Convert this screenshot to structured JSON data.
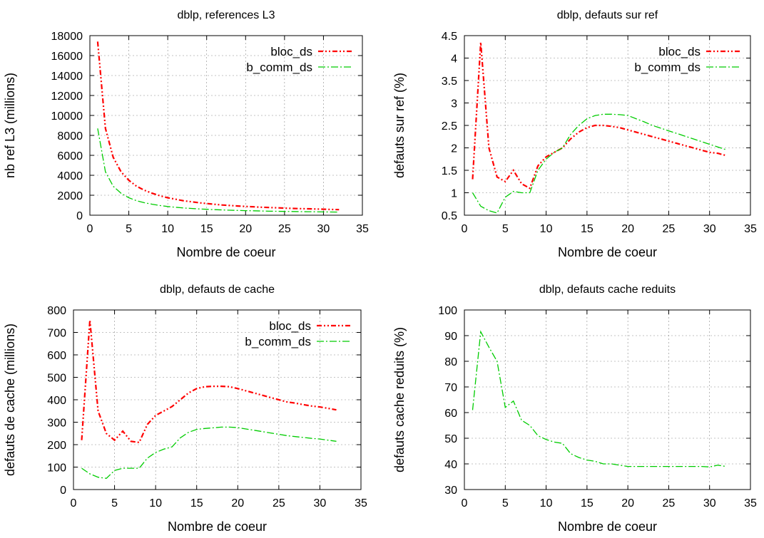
{
  "chart_data": [
    {
      "type": "line",
      "title": "dblp, references L3",
      "xlabel": "Nombre de coeur",
      "ylabel": "nb ref L3 (millions)",
      "xlim": [
        0,
        35
      ],
      "ylim": [
        0,
        18000
      ],
      "xticks": [
        0,
        5,
        10,
        15,
        20,
        25,
        30,
        35
      ],
      "yticks": [
        0,
        2000,
        4000,
        6000,
        8000,
        10000,
        12000,
        14000,
        16000,
        18000
      ],
      "grid": true,
      "legend": "top-right",
      "series": [
        {
          "name": "bloc_ds",
          "color": "#ff0000",
          "dash": "dash-dot-dot",
          "x": [
            1,
            2,
            3,
            4,
            5,
            6,
            7,
            8,
            9,
            10,
            11,
            12,
            13,
            14,
            15,
            16,
            17,
            18,
            19,
            20,
            21,
            22,
            23,
            24,
            25,
            26,
            27,
            28,
            29,
            30,
            31,
            32
          ],
          "y": [
            17400,
            8700,
            5800,
            4350,
            3500,
            2900,
            2500,
            2200,
            1950,
            1750,
            1600,
            1450,
            1350,
            1250,
            1170,
            1090,
            1020,
            970,
            920,
            880,
            840,
            800,
            770,
            740,
            710,
            680,
            660,
            640,
            620,
            600,
            580,
            560
          ]
        },
        {
          "name": "b_comm_ds",
          "color": "#00cc00",
          "dash": "long-dash-dot",
          "x": [
            1,
            2,
            3,
            4,
            5,
            6,
            7,
            8,
            9,
            10,
            11,
            12,
            13,
            14,
            15,
            16,
            17,
            18,
            19,
            20,
            21,
            22,
            23,
            24,
            25,
            26,
            27,
            28,
            29,
            30,
            31,
            32
          ],
          "y": [
            8700,
            4350,
            2900,
            2200,
            1750,
            1450,
            1250,
            1100,
            970,
            870,
            790,
            730,
            680,
            630,
            590,
            560,
            530,
            500,
            480,
            460,
            440,
            420,
            400,
            390,
            380,
            370,
            360,
            350,
            340,
            330,
            320,
            310
          ]
        }
      ]
    },
    {
      "type": "line",
      "title": "dblp, defauts sur ref",
      "xlabel": "Nombre de coeur",
      "ylabel": "defauts sur ref (%)",
      "xlim": [
        0,
        35
      ],
      "ylim": [
        0.5,
        4.5
      ],
      "xticks": [
        0,
        5,
        10,
        15,
        20,
        25,
        30,
        35
      ],
      "yticks": [
        0.5,
        1,
        1.5,
        2,
        2.5,
        3,
        3.5,
        4,
        4.5
      ],
      "grid": true,
      "legend": "top-right",
      "series": [
        {
          "name": "bloc_ds",
          "color": "#ff0000",
          "dash": "dash-dot-dot",
          "x": [
            1,
            2,
            3,
            4,
            5,
            6,
            7,
            8,
            9,
            10,
            11,
            12,
            13,
            14,
            15,
            16,
            17,
            18,
            19,
            20,
            21,
            22,
            23,
            24,
            25,
            26,
            27,
            28,
            29,
            30,
            31,
            32
          ],
          "y": [
            1.3,
            4.35,
            2.0,
            1.35,
            1.25,
            1.5,
            1.2,
            1.1,
            1.6,
            1.8,
            1.9,
            2.0,
            2.2,
            2.35,
            2.45,
            2.5,
            2.5,
            2.48,
            2.45,
            2.4,
            2.35,
            2.3,
            2.25,
            2.2,
            2.15,
            2.1,
            2.05,
            2.0,
            1.95,
            1.9,
            1.88,
            1.83
          ]
        },
        {
          "name": "b_comm_ds",
          "color": "#00cc00",
          "dash": "long-dash-dot",
          "x": [
            1,
            2,
            3,
            4,
            5,
            6,
            7,
            8,
            9,
            10,
            11,
            12,
            13,
            14,
            15,
            16,
            17,
            18,
            19,
            20,
            21,
            22,
            23,
            24,
            25,
            26,
            27,
            28,
            29,
            30,
            31,
            32
          ],
          "y": [
            1.0,
            0.7,
            0.6,
            0.55,
            0.9,
            1.03,
            1.0,
            1.0,
            1.5,
            1.75,
            1.9,
            2.0,
            2.3,
            2.5,
            2.65,
            2.72,
            2.75,
            2.75,
            2.74,
            2.72,
            2.65,
            2.58,
            2.5,
            2.44,
            2.38,
            2.32,
            2.26,
            2.2,
            2.14,
            2.08,
            2.02,
            1.96
          ]
        }
      ]
    },
    {
      "type": "line",
      "title": "dblp, defauts de cache",
      "xlabel": "Nombre de coeur",
      "ylabel": "defauts de cache (millions)",
      "xlim": [
        0,
        35
      ],
      "ylim": [
        0,
        800
      ],
      "xticks": [
        0,
        5,
        10,
        15,
        20,
        25,
        30,
        35
      ],
      "yticks": [
        0,
        100,
        200,
        300,
        400,
        500,
        600,
        700,
        800
      ],
      "grid": true,
      "legend": "top-right",
      "series": [
        {
          "name": "bloc_ds",
          "color": "#ff0000",
          "dash": "dash-dot-dot",
          "x": [
            1,
            2,
            3,
            4,
            5,
            6,
            7,
            8,
            9,
            10,
            11,
            12,
            13,
            14,
            15,
            16,
            17,
            18,
            19,
            20,
            21,
            22,
            23,
            24,
            25,
            26,
            27,
            28,
            29,
            30,
            31,
            32
          ],
          "y": [
            220,
            755,
            350,
            250,
            220,
            260,
            215,
            210,
            290,
            330,
            350,
            370,
            400,
            430,
            450,
            458,
            460,
            460,
            458,
            450,
            440,
            430,
            420,
            410,
            400,
            390,
            385,
            378,
            372,
            368,
            362,
            355
          ]
        },
        {
          "name": "b_comm_ds",
          "color": "#00cc00",
          "dash": "long-dash-dot",
          "x": [
            1,
            2,
            3,
            4,
            5,
            6,
            7,
            8,
            9,
            10,
            11,
            12,
            13,
            14,
            15,
            16,
            17,
            18,
            19,
            20,
            21,
            22,
            23,
            24,
            25,
            26,
            27,
            28,
            29,
            30,
            31,
            32
          ],
          "y": [
            95,
            70,
            55,
            50,
            85,
            95,
            95,
            95,
            140,
            165,
            180,
            190,
            230,
            255,
            268,
            272,
            275,
            278,
            278,
            276,
            270,
            264,
            258,
            252,
            246,
            240,
            236,
            232,
            228,
            225,
            220,
            215
          ]
        }
      ]
    },
    {
      "type": "line",
      "title": "dblp, defauts cache reduits",
      "xlabel": "Nombre de coeur",
      "ylabel": "defauts cache reduits (%)",
      "xlim": [
        0,
        35
      ],
      "ylim": [
        30,
        100
      ],
      "xticks": [
        0,
        5,
        10,
        15,
        20,
        25,
        30,
        35
      ],
      "yticks": [
        30,
        40,
        50,
        60,
        70,
        80,
        90,
        100
      ],
      "grid": true,
      "legend": "none",
      "series": [
        {
          "color": "#00cc00",
          "dash": "long-dash-dot",
          "x": [
            1,
            2,
            3,
            4,
            5,
            6,
            7,
            8,
            9,
            10,
            11,
            12,
            13,
            14,
            15,
            16,
            17,
            18,
            19,
            20,
            21,
            22,
            23,
            24,
            25,
            26,
            27,
            28,
            29,
            30,
            31,
            32
          ],
          "y": [
            61,
            91.5,
            85.5,
            80,
            62,
            64.5,
            57,
            55,
            51,
            49.5,
            48.5,
            48,
            44,
            42.5,
            41.5,
            41,
            40,
            40,
            39.5,
            39,
            39,
            39,
            39,
            39,
            39,
            39,
            39,
            39,
            39,
            38.8,
            39.5,
            39
          ]
        }
      ]
    }
  ]
}
